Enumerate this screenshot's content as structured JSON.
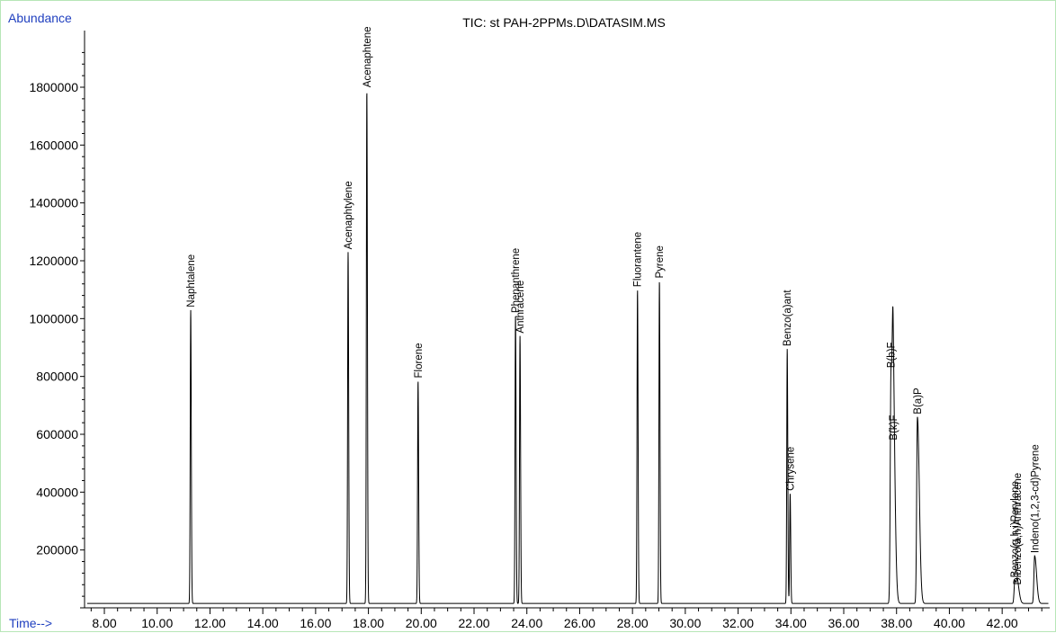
{
  "chart_data": {
    "type": "line",
    "title": "TIC: st PAH-2PPMs.D\\DATASIM.MS",
    "ylabel": "Abundance",
    "xlabel": "Time-->",
    "xlim": [
      7.25,
      43.8
    ],
    "ylim": [
      0,
      2000000
    ],
    "x_ticks": [
      "8.00",
      "10.00",
      "12.00",
      "14.00",
      "16.00",
      "18.00",
      "20.00",
      "22.00",
      "24.00",
      "26.00",
      "28.00",
      "30.00",
      "32.00",
      "34.00",
      "36.00",
      "38.00",
      "40.00",
      "42.00"
    ],
    "y_ticks": [
      "200000",
      "400000",
      "600000",
      "800000",
      "1000000",
      "1200000",
      "1400000",
      "1600000",
      "1800000"
    ],
    "baseline": 15000,
    "series": [
      {
        "peaks": [
          {
            "label": "Naphtalene",
            "x": 11.27,
            "y": 1030000,
            "tail": 0
          },
          {
            "label": "Acenaphtylene",
            "x": 17.23,
            "y": 1230000,
            "tail": 0
          },
          {
            "label": "Acenaphtene",
            "x": 17.94,
            "y": 1790000,
            "tail": 0
          },
          {
            "label": "Florene",
            "x": 19.88,
            "y": 785000,
            "tail": 0
          },
          {
            "label": "Phenanthrene",
            "x": 23.57,
            "y": 1010000,
            "tail": 0
          },
          {
            "label": "Anthracene",
            "x": 23.74,
            "y": 940000,
            "tail": 0
          },
          {
            "label": "Fluorantene",
            "x": 28.19,
            "y": 1100000,
            "tail": 0
          },
          {
            "label": "Pyrene",
            "x": 29.02,
            "y": 1130000,
            "tail": 0
          },
          {
            "label": "Benzo(a)ant",
            "x": 33.86,
            "y": 895000,
            "tail": 0
          },
          {
            "label": "Chrysene",
            "x": 33.97,
            "y": 395000,
            "tail": 0
          },
          {
            "label": "B(b)F",
            "x": 37.79,
            "y": 820000,
            "tail": 1
          },
          {
            "label": "B(k)F",
            "x": 37.87,
            "y": 570000,
            "tail": 1
          },
          {
            "label": "B(a)P",
            "x": 38.79,
            "y": 660000,
            "tail": 1
          },
          {
            "label": "Benzo(g,h,i)Perylene",
            "x": 42.48,
            "y": 95000,
            "tail": 1
          },
          {
            "label": "Dibenzo(a,h)Anthracene",
            "x": 42.58,
            "y": 70000,
            "tail": 1
          },
          {
            "label": "Indeno(1,2,3-cd)Pyrene",
            "x": 43.23,
            "y": 180000,
            "tail": 1
          }
        ]
      }
    ]
  }
}
